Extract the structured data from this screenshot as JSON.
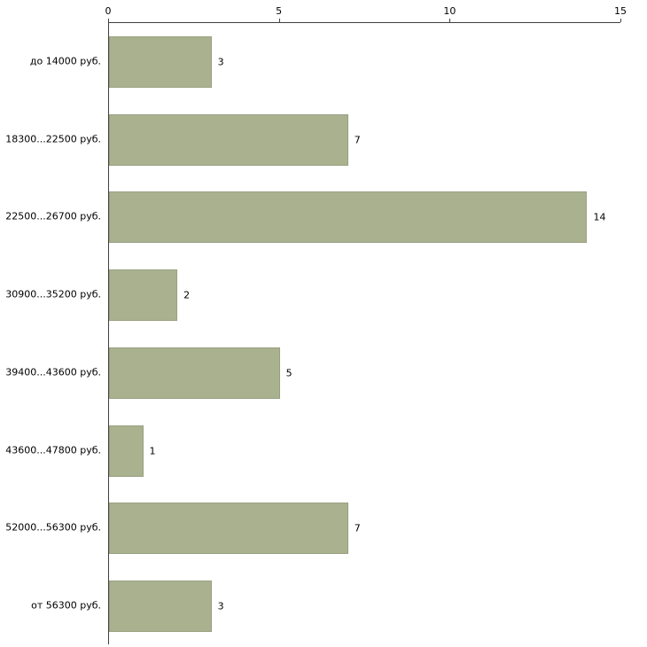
{
  "chart_data": {
    "type": "bar",
    "orientation": "horizontal",
    "title": "",
    "xlabel": "",
    "ylabel": "",
    "categories": [
      "до 14000 руб.",
      "18300...22500 руб.",
      "22500...26700 руб.",
      "30900...35200 руб.",
      "39400...43600 руб.",
      "43600...47800 руб.",
      "52000...56300 руб.",
      "от 56300 руб."
    ],
    "values": [
      3,
      7,
      14,
      2,
      5,
      1,
      7,
      3
    ],
    "xlim": [
      0,
      15
    ],
    "xticks": [
      0,
      5,
      10,
      15
    ],
    "axis_position": "top",
    "grid": false,
    "legend": false,
    "bar_color": "#a9b18e",
    "bar_border_color": "#99a082",
    "axis_color": "#404040",
    "background": "#ffffff"
  }
}
